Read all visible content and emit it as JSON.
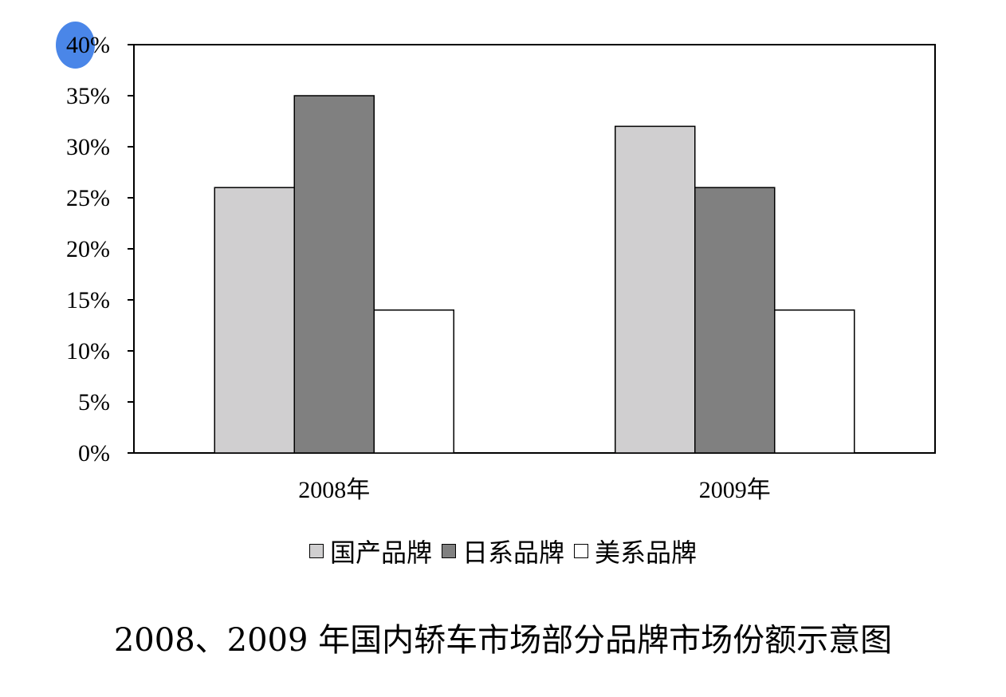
{
  "chart_data": {
    "type": "bar",
    "title": "2008、2009 年国内轿车市场部分品牌市场份额示意图",
    "xlabel": "",
    "ylabel": "",
    "categories": [
      "2008年",
      "2009年"
    ],
    "series": [
      {
        "name": "国产品牌",
        "values": [
          26,
          32
        ],
        "color": "#d0cfd0"
      },
      {
        "name": "日系品牌",
        "values": [
          35,
          26
        ],
        "color": "#808080"
      },
      {
        "name": "美系品牌",
        "values": [
          14,
          14
        ],
        "color": "#ffffff"
      }
    ],
    "ylim": [
      0,
      40
    ],
    "yticks": [
      0,
      5,
      10,
      15,
      20,
      25,
      30,
      35,
      40
    ],
    "ytick_labels": [
      "0%",
      "5%",
      "10%",
      "15%",
      "20%",
      "25%",
      "30%",
      "35%",
      "40%"
    ],
    "legend_position": "bottom",
    "grid": false
  },
  "highlight": {
    "color": "#4a86e8"
  }
}
